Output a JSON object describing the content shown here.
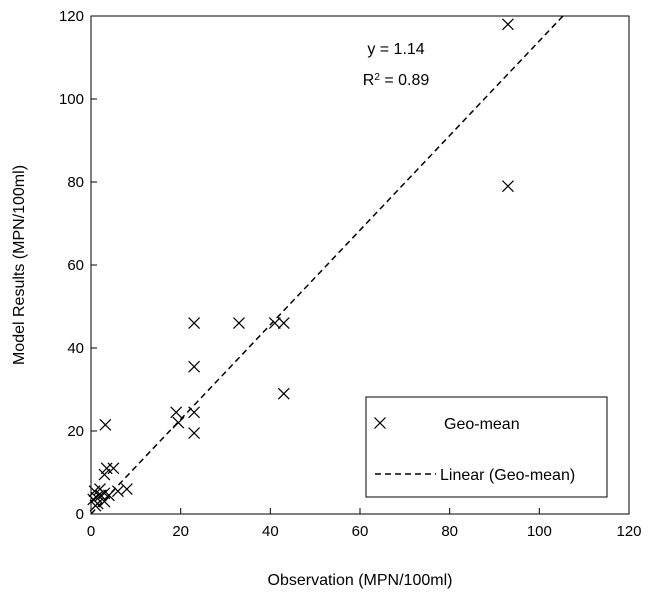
{
  "chart_data": {
    "type": "scatter",
    "xlabel": "Observation (MPN/100ml)",
    "ylabel": "Model Results (MPN/100ml)",
    "xlim": [
      0,
      120
    ],
    "ylim": [
      0,
      120
    ],
    "xticks": [
      0,
      20,
      40,
      60,
      80,
      100,
      120
    ],
    "yticks": [
      0,
      20,
      40,
      60,
      80,
      100,
      120
    ],
    "grid": false,
    "legend_position": "bottom-right",
    "annotation": {
      "equation": "y = 1.14",
      "r2_prefix": "R",
      "r2_exponent": "2",
      "r2_value": " = 0.89",
      "position": "top-right"
    },
    "series": [
      {
        "name": "Geo-mean",
        "marker": "x",
        "color": "#000000",
        "x": [
          0.5,
          0.8,
          1.0,
          1.2,
          1.5,
          2.0,
          2.2,
          3.0,
          3.0,
          3.0,
          3.2,
          3.5,
          4.0,
          5.0,
          6.0,
          8.0,
          19.0,
          19.5,
          23.0,
          23.0,
          23.0,
          23.0,
          33.0,
          41.0,
          43.0,
          43.0,
          93.0,
          93.0
        ],
        "y": [
          3.5,
          5.5,
          2.0,
          4.0,
          2.5,
          6.0,
          4.5,
          3.0,
          5.0,
          9.5,
          21.5,
          11.0,
          4.5,
          11.0,
          5.5,
          6.0,
          24.5,
          22.0,
          46.0,
          35.5,
          24.5,
          19.5,
          46.0,
          46.0,
          46.0,
          29.0,
          118.0,
          79.0
        ]
      },
      {
        "name": "Linear (Geo-mean)",
        "type": "line",
        "style": "dashed",
        "color": "#000000",
        "slope": 1.14,
        "intercept": 0
      }
    ]
  }
}
